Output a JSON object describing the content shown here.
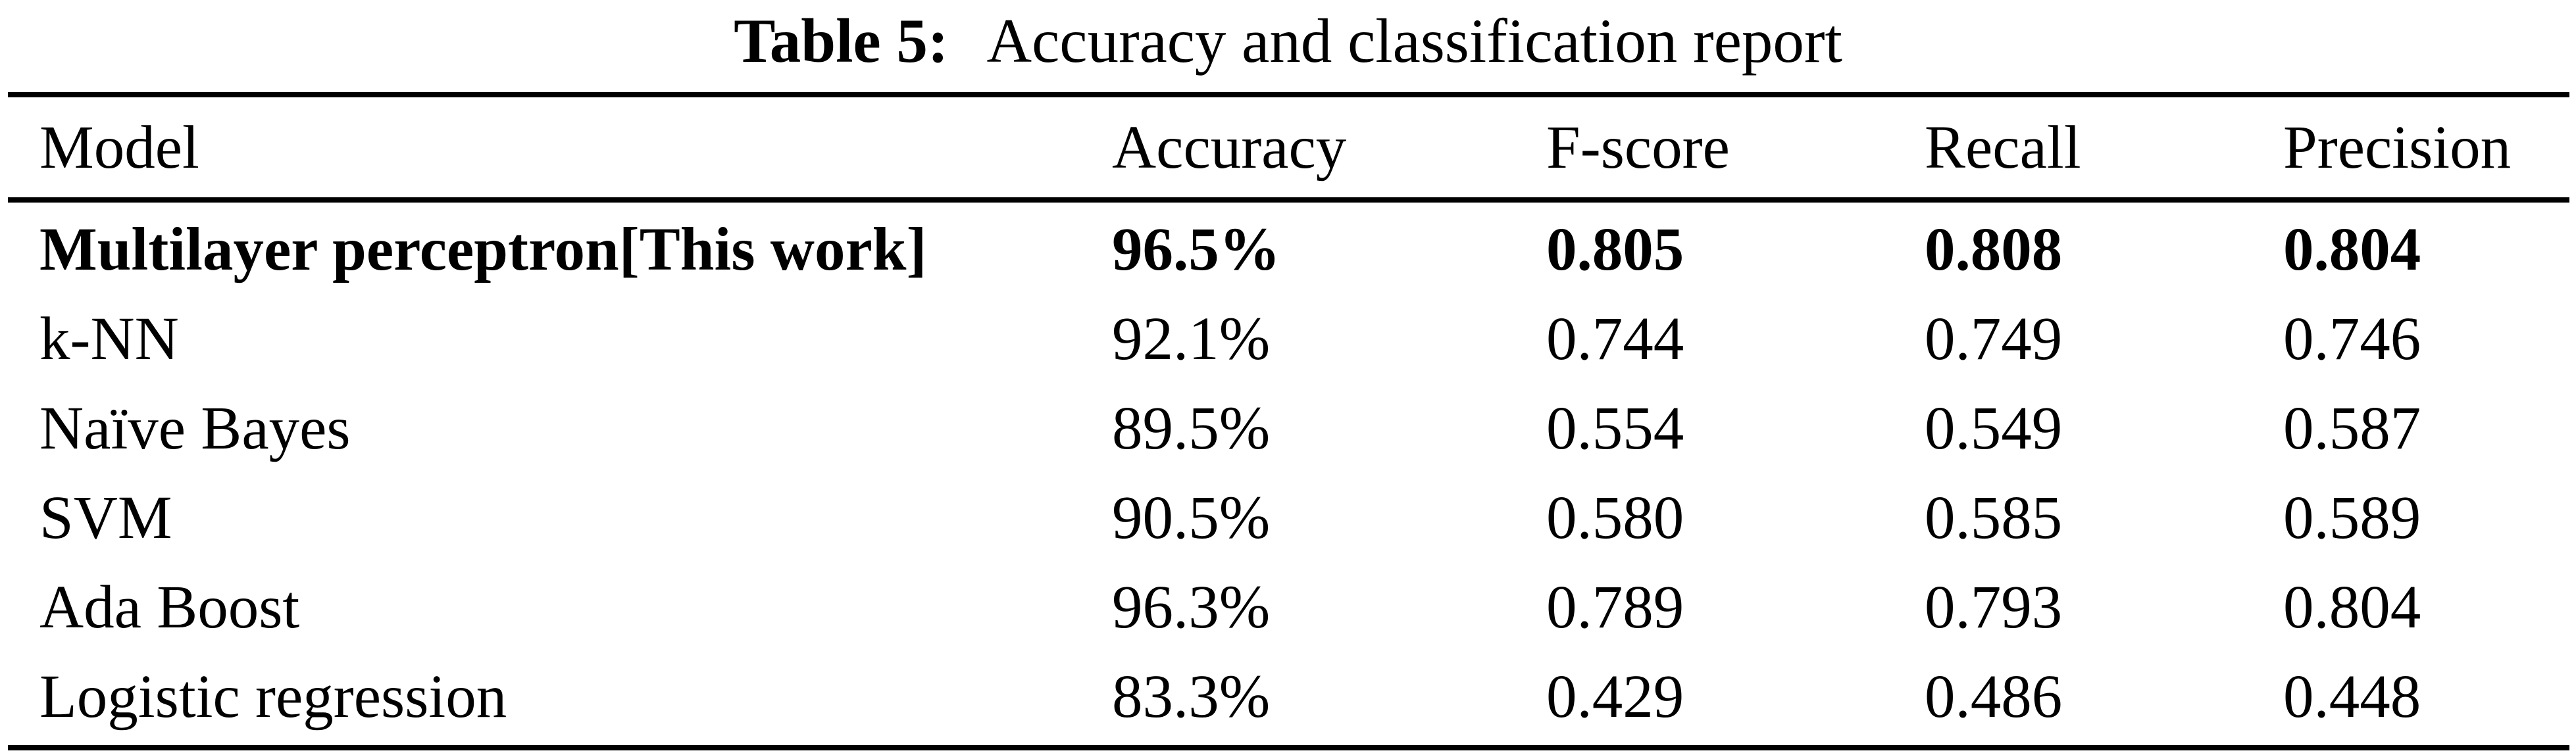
{
  "title": {
    "label": "Table 5:",
    "text": "Accuracy and classification report"
  },
  "table": {
    "columns": [
      "Model",
      "Accuracy",
      "F-score",
      "Recall",
      "Precision"
    ],
    "rows": [
      {
        "model": "Multilayer perceptron[This work]",
        "accuracy": "96.5%",
        "f_score": "0.805",
        "recall": "0.808",
        "precision": "0.804",
        "bold": true
      },
      {
        "model": "k-NN",
        "accuracy": "92.1%",
        "f_score": "0.744",
        "recall": "0.749",
        "precision": "0.746",
        "bold": false
      },
      {
        "model": "Naïve Bayes",
        "accuracy": "89.5%",
        "f_score": "0.554",
        "recall": "0.549",
        "precision": "0.587",
        "bold": false
      },
      {
        "model": "SVM",
        "accuracy": "90.5%",
        "f_score": "0.580",
        "recall": "0.585",
        "precision": "0.589",
        "bold": false
      },
      {
        "model": "Ada Boost",
        "accuracy": "96.3%",
        "f_score": "0.789",
        "recall": "0.793",
        "precision": "0.804",
        "bold": false
      },
      {
        "model": "Logistic regression",
        "accuracy": "83.3%",
        "f_score": "0.429",
        "recall": "0.486",
        "precision": "0.448",
        "bold": false
      }
    ]
  },
  "chart_data": {
    "type": "table",
    "title": "Table 5: Accuracy and classification report",
    "columns": [
      "Model",
      "Accuracy",
      "F-score",
      "Recall",
      "Precision"
    ],
    "rows": [
      [
        "Multilayer perceptron[This work]",
        "96.5%",
        0.805,
        0.808,
        0.804
      ],
      [
        "k-NN",
        "92.1%",
        0.744,
        0.749,
        0.746
      ],
      [
        "Naïve Bayes",
        "89.5%",
        0.554,
        0.549,
        0.587
      ],
      [
        "SVM",
        "90.5%",
        0.58,
        0.585,
        0.589
      ],
      [
        "Ada Boost",
        "96.3%",
        0.789,
        0.793,
        0.804
      ],
      [
        "Logistic regression",
        "83.3%",
        0.429,
        0.486,
        0.448
      ]
    ]
  },
  "colors": {
    "text": "#000000",
    "background": "#ffffff",
    "rule": "#000000"
  }
}
